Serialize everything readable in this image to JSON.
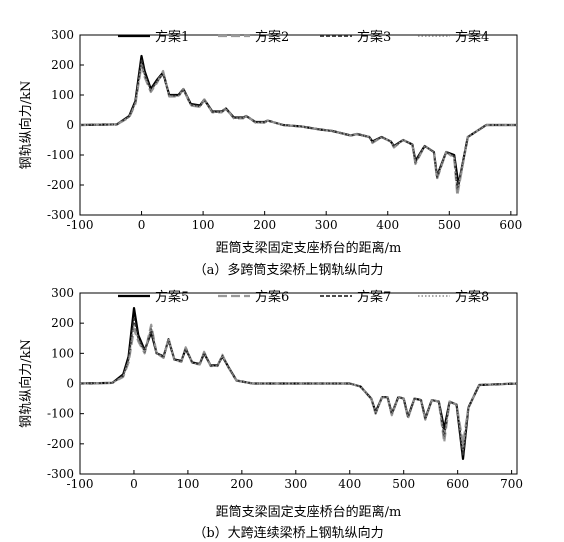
{
  "chart_data": [
    {
      "type": "line",
      "caption": "（a）多跨筒支梁桥上钢轨纵向力",
      "xlabel": "距筒支梁固定支座桥台的距离/m",
      "ylabel": "钢轨纵向力/kN",
      "xlim": [
        -100,
        610
      ],
      "ylim": [
        -300,
        300
      ],
      "xticks": [
        -100,
        0,
        100,
        200,
        300,
        400,
        500,
        600
      ],
      "yticks": [
        -300,
        -200,
        -100,
        0,
        100,
        200,
        300
      ],
      "grid": false,
      "legend_position": "top",
      "series": [
        {
          "name": "方案1",
          "style": "solid",
          "color": "#000000",
          "x": [
            -100,
            -40,
            -20,
            -10,
            0,
            5,
            15,
            25,
            35,
            45,
            60,
            68,
            80,
            95,
            102,
            115,
            130,
            137,
            150,
            165,
            170,
            185,
            200,
            205,
            230,
            260,
            290,
            310,
            330,
            340,
            350,
            370,
            375,
            390,
            405,
            410,
            425,
            440,
            445,
            460,
            475,
            480,
            495,
            508,
            515,
            530,
            560,
            610
          ],
          "y": [
            0,
            2,
            30,
            80,
            230,
            180,
            120,
            150,
            175,
            100,
            100,
            120,
            70,
            65,
            85,
            45,
            45,
            55,
            25,
            25,
            30,
            10,
            10,
            15,
            0,
            -5,
            -15,
            -20,
            -30,
            -35,
            -30,
            -40,
            -55,
            -40,
            -55,
            -70,
            -50,
            -65,
            -120,
            -70,
            -90,
            -170,
            -90,
            -100,
            -200,
            -40,
            0,
            0
          ]
        },
        {
          "name": "方案2",
          "style": "dash",
          "color": "#999999",
          "x": [
            -100,
            -40,
            -20,
            -10,
            0,
            5,
            15,
            25,
            35,
            45,
            60,
            68,
            80,
            95,
            102,
            115,
            130,
            137,
            150,
            165,
            170,
            185,
            200,
            205,
            230,
            260,
            290,
            310,
            330,
            340,
            350,
            370,
            375,
            390,
            405,
            410,
            425,
            440,
            445,
            460,
            475,
            480,
            495,
            508,
            513,
            530,
            560,
            610
          ],
          "y": [
            0,
            2,
            25,
            70,
            200,
            160,
            110,
            140,
            180,
            95,
            95,
            120,
            65,
            60,
            85,
            42,
            42,
            55,
            22,
            22,
            32,
            8,
            8,
            15,
            0,
            -5,
            -15,
            -20,
            -30,
            -35,
            -30,
            -40,
            -60,
            -40,
            -55,
            -75,
            -50,
            -65,
            -130,
            -70,
            -90,
            -180,
            -90,
            -110,
            -235,
            -40,
            0,
            0
          ]
        },
        {
          "name": "方案3",
          "style": "dash-short",
          "color": "#333333",
          "x": [
            -100,
            -40,
            -20,
            -10,
            0,
            5,
            15,
            25,
            35,
            45,
            60,
            68,
            80,
            95,
            102,
            115,
            130,
            137,
            150,
            165,
            170,
            185,
            200,
            205,
            230,
            260,
            290,
            310,
            330,
            340,
            350,
            370,
            375,
            390,
            405,
            410,
            425,
            440,
            445,
            460,
            475,
            480,
            495,
            508,
            513,
            530,
            560,
            610
          ],
          "y": [
            0,
            2,
            28,
            75,
            215,
            170,
            115,
            145,
            170,
            98,
            98,
            118,
            68,
            62,
            82,
            44,
            44,
            53,
            24,
            24,
            30,
            9,
            9,
            14,
            0,
            -5,
            -15,
            -20,
            -30,
            -35,
            -30,
            -40,
            -57,
            -40,
            -55,
            -72,
            -50,
            -65,
            -125,
            -70,
            -90,
            -175,
            -90,
            -105,
            -215,
            -40,
            0,
            0
          ]
        },
        {
          "name": "方案4",
          "style": "dot",
          "color": "#888888",
          "x": [
            -100,
            -40,
            -20,
            -10,
            0,
            5,
            15,
            25,
            35,
            45,
            60,
            68,
            80,
            95,
            102,
            115,
            130,
            137,
            150,
            165,
            170,
            185,
            200,
            205,
            230,
            260,
            290,
            310,
            330,
            340,
            350,
            370,
            375,
            390,
            405,
            410,
            425,
            440,
            445,
            460,
            475,
            480,
            495,
            508,
            513,
            530,
            560,
            610
          ],
          "y": [
            0,
            2,
            26,
            72,
            205,
            165,
            112,
            142,
            175,
            96,
            96,
            119,
            66,
            61,
            84,
            43,
            43,
            54,
            23,
            23,
            31,
            8,
            8,
            14,
            0,
            -5,
            -15,
            -20,
            -30,
            -35,
            -30,
            -40,
            -58,
            -40,
            -55,
            -73,
            -50,
            -65,
            -128,
            -70,
            -90,
            -178,
            -90,
            -108,
            -225,
            -40,
            0,
            0
          ]
        }
      ]
    },
    {
      "type": "line",
      "caption": "（b）大跨连续梁桥上钢轨纵向力",
      "xlabel": "距筒支梁固定支座桥台的距离/m",
      "ylabel": "钢轨纵向力/kN",
      "xlim": [
        -100,
        710
      ],
      "ylim": [
        -300,
        300
      ],
      "xticks": [
        -100,
        0,
        100,
        200,
        300,
        400,
        500,
        600,
        700
      ],
      "yticks": [
        -300,
        -200,
        -100,
        0,
        100,
        200,
        300
      ],
      "grid": false,
      "legend_position": "top",
      "series": [
        {
          "name": "方案5",
          "style": "solid",
          "color": "#000000",
          "x": [
            -100,
            -40,
            -20,
            -10,
            0,
            8,
            20,
            32,
            42,
            55,
            64,
            75,
            88,
            96,
            108,
            122,
            130,
            142,
            155,
            164,
            175,
            190,
            220,
            300,
            400,
            420,
            430,
            440,
            448,
            460,
            470,
            478,
            490,
            500,
            508,
            520,
            532,
            540,
            552,
            565,
            575,
            585,
            598,
            610,
            620,
            640,
            710
          ],
          "y": [
            0,
            2,
            30,
            90,
            250,
            160,
            110,
            170,
            100,
            90,
            145,
            80,
            75,
            115,
            70,
            65,
            100,
            60,
            60,
            90,
            55,
            10,
            0,
            0,
            0,
            -10,
            -30,
            -50,
            -95,
            -45,
            -45,
            -100,
            -45,
            -50,
            -110,
            -50,
            -55,
            -115,
            -55,
            -60,
            -150,
            -60,
            -70,
            -250,
            -80,
            -5,
            0
          ]
        },
        {
          "name": "方案6",
          "style": "dash",
          "color": "#999999",
          "x": [
            -100,
            -40,
            -20,
            -10,
            0,
            8,
            20,
            32,
            42,
            55,
            64,
            75,
            88,
            96,
            108,
            122,
            130,
            142,
            155,
            164,
            175,
            190,
            220,
            300,
            400,
            420,
            430,
            440,
            448,
            460,
            470,
            478,
            490,
            500,
            508,
            520,
            532,
            540,
            552,
            565,
            575,
            585,
            598,
            610,
            620,
            640,
            710
          ],
          "y": [
            0,
            2,
            22,
            70,
            180,
            140,
            100,
            195,
            100,
            85,
            150,
            78,
            72,
            120,
            68,
            63,
            105,
            58,
            58,
            95,
            53,
            10,
            0,
            0,
            0,
            -10,
            -30,
            -50,
            -100,
            -45,
            -45,
            -105,
            -45,
            -50,
            -115,
            -50,
            -55,
            -120,
            -55,
            -60,
            -195,
            -60,
            -70,
            -200,
            -80,
            -5,
            0
          ]
        },
        {
          "name": "方案7",
          "style": "dash-short",
          "color": "#333333",
          "x": [
            -100,
            -40,
            -20,
            -10,
            0,
            8,
            20,
            32,
            42,
            55,
            64,
            75,
            88,
            96,
            108,
            122,
            130,
            142,
            155,
            164,
            175,
            190,
            220,
            300,
            400,
            420,
            430,
            440,
            448,
            460,
            470,
            478,
            490,
            500,
            508,
            520,
            532,
            540,
            552,
            565,
            575,
            585,
            598,
            610,
            620,
            640,
            710
          ],
          "y": [
            0,
            2,
            26,
            80,
            215,
            150,
            105,
            180,
            100,
            88,
            148,
            79,
            73,
            118,
            69,
            64,
            102,
            59,
            59,
            92,
            54,
            10,
            0,
            0,
            0,
            -10,
            -30,
            -50,
            -98,
            -45,
            -45,
            -102,
            -45,
            -50,
            -112,
            -50,
            -55,
            -118,
            -55,
            -60,
            -175,
            -60,
            -70,
            -240,
            -80,
            -5,
            0
          ]
        },
        {
          "name": "方案8",
          "style": "dot",
          "color": "#888888",
          "x": [
            -100,
            -40,
            -20,
            -10,
            0,
            8,
            20,
            32,
            42,
            55,
            64,
            75,
            88,
            96,
            108,
            122,
            130,
            142,
            155,
            164,
            175,
            190,
            220,
            300,
            400,
            420,
            430,
            440,
            448,
            460,
            470,
            478,
            490,
            500,
            508,
            520,
            532,
            540,
            552,
            565,
            575,
            585,
            598,
            610,
            620,
            640,
            710
          ],
          "y": [
            0,
            2,
            24,
            75,
            195,
            145,
            102,
            188,
            100,
            86,
            149,
            78,
            72,
            119,
            68,
            63,
            103,
            58,
            58,
            93,
            53,
            10,
            0,
            0,
            0,
            -10,
            -30,
            -50,
            -99,
            -45,
            -45,
            -103,
            -45,
            -50,
            -113,
            -50,
            -55,
            -119,
            -55,
            -60,
            -185,
            -60,
            -70,
            -220,
            -80,
            -5,
            0
          ]
        }
      ]
    }
  ]
}
